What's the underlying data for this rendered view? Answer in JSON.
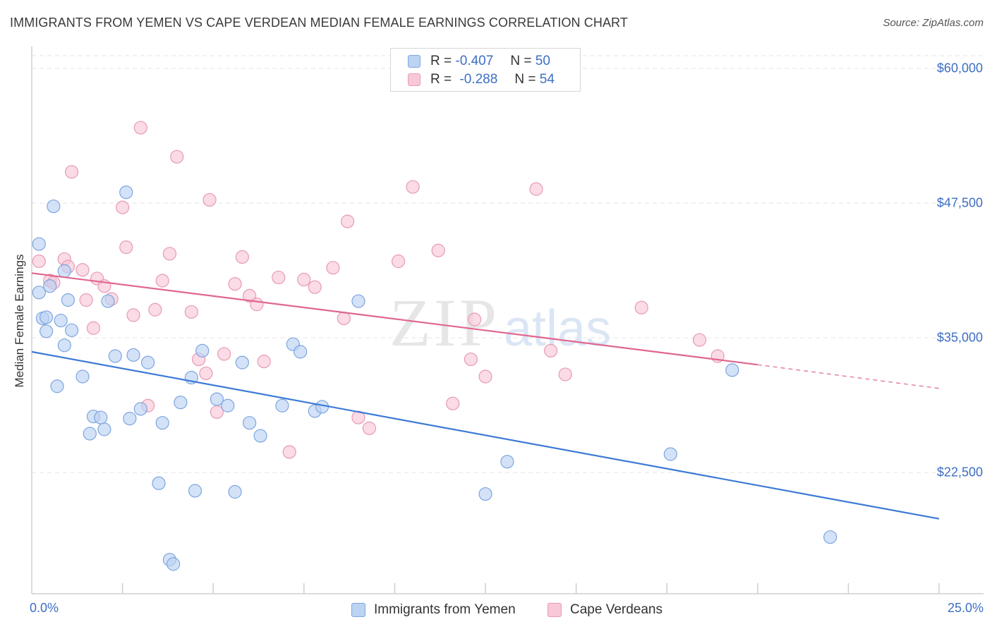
{
  "title": "IMMIGRANTS FROM YEMEN VS CAPE VERDEAN MEDIAN FEMALE EARNINGS CORRELATION CHART",
  "source": "Source: ZipAtlas.com",
  "watermark": {
    "zip": "ZIP",
    "atlas": "atlas"
  },
  "legend": {
    "r_label": "R =",
    "n_label": "N =",
    "rows": [
      {
        "r": "-0.407",
        "n": "50"
      },
      {
        "r": "-0.288",
        "n": "54"
      }
    ]
  },
  "colors": {
    "blue_fill": "#bcd3f3",
    "blue_stroke": "#7ea5e0",
    "blue_line": "#3d7ad6",
    "pink_fill": "#f8c8d8",
    "pink_stroke": "#e89ab5",
    "pink_line": "#e0668f",
    "grid": "#e3e3e3",
    "tick_text": "#3d6fc4"
  },
  "chart_data": {
    "type": "scatter",
    "title": "IMMIGRANTS FROM YEMEN VS CAPE VERDEAN MEDIAN FEMALE EARNINGS CORRELATION CHART",
    "xlabel": "",
    "ylabel": "Median Female Earnings",
    "xlim": [
      0,
      25
    ],
    "ylim": [
      11500,
      62000
    ],
    "x_tick_labels": [
      "0.0%",
      "25.0%"
    ],
    "y_ticks": [
      22500,
      35000,
      47500,
      60000
    ],
    "y_tick_labels": [
      "$22,500",
      "$35,000",
      "$47,500",
      "$60,000"
    ],
    "grid": true,
    "legend_position": "top-center",
    "series": [
      {
        "name": "Immigrants from Yemen",
        "color": "#3d7ad6",
        "trend": {
          "x": [
            0,
            25
          ],
          "y": [
            33700,
            18200
          ]
        },
        "points": [
          [
            0.2,
            39200
          ],
          [
            0.2,
            43700
          ],
          [
            0.3,
            36800
          ],
          [
            0.4,
            36900
          ],
          [
            0.4,
            35600
          ],
          [
            0.5,
            39800
          ],
          [
            0.6,
            47200
          ],
          [
            0.7,
            30500
          ],
          [
            0.8,
            36600
          ],
          [
            0.9,
            41200
          ],
          [
            0.9,
            34300
          ],
          [
            1.0,
            38500
          ],
          [
            1.1,
            35700
          ],
          [
            1.4,
            31400
          ],
          [
            1.7,
            27700
          ],
          [
            2.0,
            26500
          ],
          [
            2.1,
            38400
          ],
          [
            2.3,
            33300
          ],
          [
            2.6,
            48500
          ],
          [
            2.7,
            27500
          ],
          [
            2.8,
            33400
          ],
          [
            3.0,
            28400
          ],
          [
            3.2,
            32700
          ],
          [
            3.5,
            21500
          ],
          [
            3.6,
            27100
          ],
          [
            3.8,
            14400
          ],
          [
            3.9,
            14000
          ],
          [
            4.1,
            29000
          ],
          [
            4.4,
            31300
          ],
          [
            4.5,
            20800
          ],
          [
            4.7,
            33800
          ],
          [
            5.1,
            29300
          ],
          [
            5.4,
            28700
          ],
          [
            5.6,
            20700
          ],
          [
            5.8,
            32700
          ],
          [
            6.0,
            27100
          ],
          [
            6.3,
            25900
          ],
          [
            6.9,
            28700
          ],
          [
            7.2,
            34400
          ],
          [
            7.4,
            33700
          ],
          [
            7.8,
            28200
          ],
          [
            8.0,
            28600
          ],
          [
            9.0,
            38400
          ],
          [
            12.5,
            20500
          ],
          [
            13.1,
            23500
          ],
          [
            17.6,
            24200
          ],
          [
            19.3,
            32000
          ],
          [
            22.0,
            16500
          ],
          [
            1.6,
            26100
          ],
          [
            1.9,
            27600
          ]
        ]
      },
      {
        "name": "Cape Verdeans",
        "color": "#e0668f",
        "trend": {
          "x": [
            0,
            20
          ],
          "y": [
            41000,
            32500
          ]
        },
        "trend_dashed": {
          "x": [
            20,
            25
          ],
          "y": [
            32500,
            30300
          ]
        },
        "points": [
          [
            0.2,
            42100
          ],
          [
            0.5,
            40300
          ],
          [
            0.6,
            40100
          ],
          [
            0.9,
            42300
          ],
          [
            1.0,
            41600
          ],
          [
            1.1,
            50400
          ],
          [
            1.4,
            41300
          ],
          [
            1.5,
            38500
          ],
          [
            1.7,
            35900
          ],
          [
            1.8,
            40500
          ],
          [
            2.0,
            39800
          ],
          [
            2.2,
            38600
          ],
          [
            2.5,
            47100
          ],
          [
            2.6,
            43400
          ],
          [
            2.8,
            37100
          ],
          [
            3.0,
            54500
          ],
          [
            3.2,
            28700
          ],
          [
            3.4,
            37600
          ],
          [
            3.6,
            40300
          ],
          [
            3.8,
            42800
          ],
          [
            4.0,
            51800
          ],
          [
            4.4,
            37400
          ],
          [
            4.6,
            33000
          ],
          [
            4.8,
            31700
          ],
          [
            4.9,
            47800
          ],
          [
            5.1,
            28100
          ],
          [
            5.3,
            33500
          ],
          [
            5.6,
            40000
          ],
          [
            5.8,
            42500
          ],
          [
            6.0,
            38900
          ],
          [
            6.2,
            38100
          ],
          [
            6.4,
            32800
          ],
          [
            6.8,
            40600
          ],
          [
            7.1,
            24400
          ],
          [
            7.5,
            40400
          ],
          [
            7.8,
            39700
          ],
          [
            8.3,
            41500
          ],
          [
            8.6,
            36800
          ],
          [
            8.7,
            45800
          ],
          [
            9.0,
            27600
          ],
          [
            9.3,
            26600
          ],
          [
            10.1,
            42100
          ],
          [
            10.5,
            49000
          ],
          [
            11.2,
            43100
          ],
          [
            11.6,
            28900
          ],
          [
            12.1,
            33000
          ],
          [
            12.2,
            36700
          ],
          [
            12.5,
            31400
          ],
          [
            13.9,
            48800
          ],
          [
            14.3,
            33800
          ],
          [
            14.7,
            31600
          ],
          [
            16.8,
            37800
          ],
          [
            18.4,
            34800
          ],
          [
            18.9,
            33300
          ]
        ]
      }
    ]
  }
}
